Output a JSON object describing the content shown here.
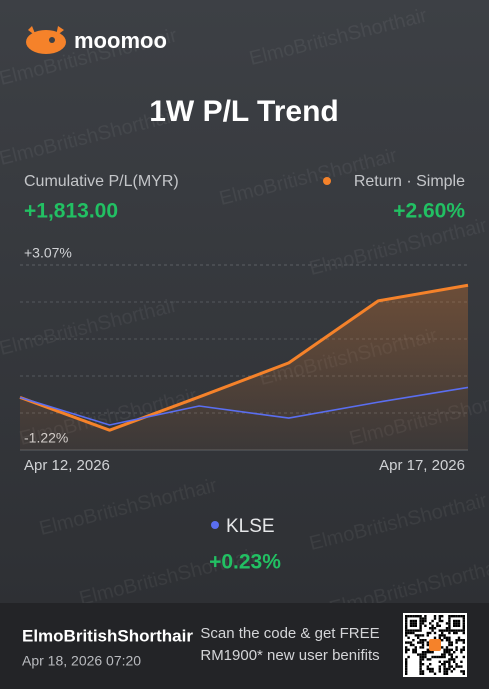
{
  "brand": "moomoo",
  "watermark": "ElmoBritishShorthair",
  "chart_data": {
    "type": "line",
    "title": "1W P/L Trend",
    "summary_label": "Cumulative P/L(MYR)",
    "summary_value": "+1,813.00",
    "categories": [
      "Apr 12, 2026",
      null,
      null,
      null,
      null,
      "Apr 17, 2026"
    ],
    "ylim": [
      -1.22,
      3.07
    ],
    "yticks": [
      {
        "value": 3.07,
        "label": "+3.07%"
      },
      {
        "value": -1.22,
        "label": "-1.22%"
      }
    ],
    "grid": true,
    "series": [
      {
        "name": "Return · Simple",
        "color": "#f5822a",
        "values": [
          0,
          -0.76,
          0.01,
          0.8,
          2.24,
          2.6
        ],
        "change_label": "+2.60%"
      },
      {
        "name": "KLSE",
        "color": "#5a6ef0",
        "values": [
          0,
          -0.64,
          -0.2,
          -0.48,
          -0.11,
          0.23
        ],
        "change_label": "+0.23%"
      }
    ]
  },
  "footer": {
    "user": "ElmoBritishShorthair",
    "timestamp": "Apr 18, 2026 07:20",
    "promo_line1": "Scan the code & get FREE",
    "promo_line2": "RM1900* new user benifits"
  }
}
